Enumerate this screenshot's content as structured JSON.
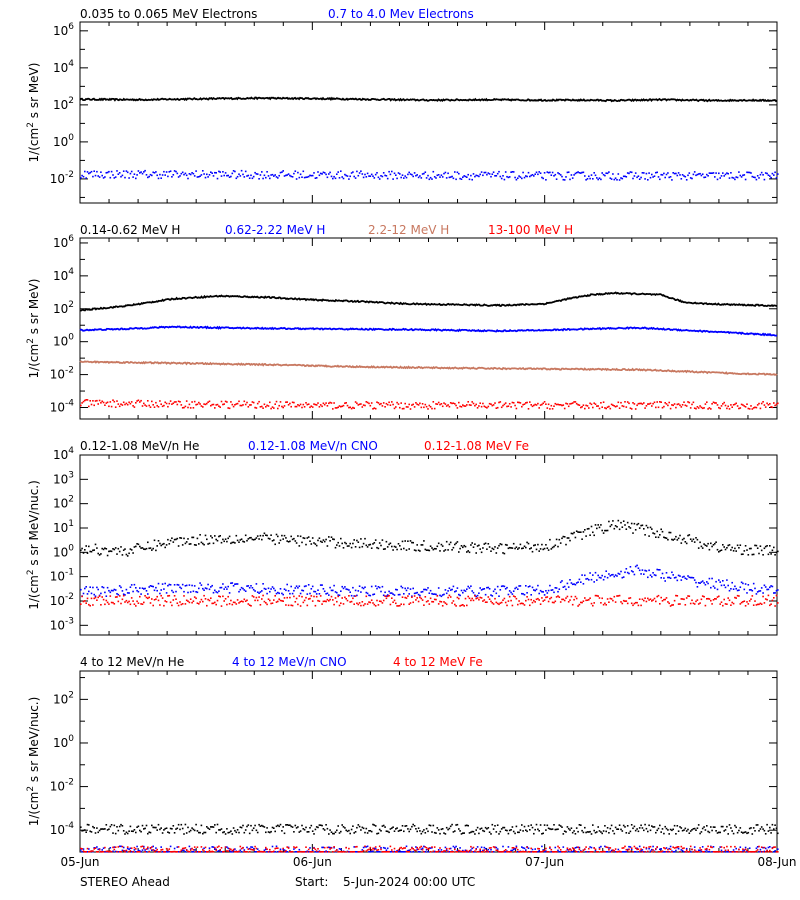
{
  "footer": {
    "spacecraft": "STEREO Ahead",
    "start_label": "Start:",
    "start_value": "5-Jun-2024 00:00 UTC"
  },
  "colors": {
    "black": "#000000",
    "blue": "#0000ff",
    "brown": "#c87860",
    "red": "#ff0000"
  },
  "chart_data": [
    {
      "type": "scatter",
      "title": "",
      "ylabel": "1/(cm² s sr MeV)",
      "ylabel_parts": [
        "1/(cm",
        "2",
        " s sr MeV)"
      ],
      "yscale": "log",
      "ylim": [
        0.0005,
        3000000
      ],
      "yticks": [
        {
          "b": "10",
          "e": "-2",
          "v": 0.01
        },
        {
          "b": "10",
          "e": "0",
          "v": 1
        },
        {
          "b": "10",
          "e": "2",
          "v": 100
        },
        {
          "b": "10",
          "e": "4",
          "v": 10000
        },
        {
          "b": "10",
          "e": "6",
          "v": 1000000
        }
      ],
      "xlim": [
        "2024-06-05",
        "2024-06-08"
      ],
      "show_xticklabels": false,
      "series": [
        {
          "name": "0.035 to 0.065 MeV Electrons",
          "color": "black",
          "style": "line",
          "x": [
            0,
            0.25,
            0.5,
            0.75,
            1.0,
            1.25,
            1.5,
            1.75,
            2.0,
            2.2,
            2.3,
            2.5,
            2.75,
            2.85,
            3.0
          ],
          "y": [
            200,
            190,
            210,
            230,
            220,
            200,
            180,
            190,
            180,
            180,
            170,
            190,
            170,
            180,
            170
          ]
        },
        {
          "name": "0.7 to 4.0 Mev Electrons",
          "color": "blue",
          "style": "dots",
          "x": [
            0,
            1,
            2,
            3
          ],
          "y": [
            0.02,
            0.018,
            0.016,
            0.016
          ]
        }
      ]
    },
    {
      "type": "scatter",
      "title": "",
      "ylabel": "1/(cm² s sr MeV)",
      "ylabel_parts": [
        "1/(cm",
        "2",
        " s sr MeV)"
      ],
      "yscale": "log",
      "ylim": [
        2e-05,
        2000000
      ],
      "yticks": [
        {
          "b": "10",
          "e": "-4",
          "v": 0.0001
        },
        {
          "b": "10",
          "e": "-2",
          "v": 0.01
        },
        {
          "b": "10",
          "e": "0",
          "v": 1
        },
        {
          "b": "10",
          "e": "2",
          "v": 100
        },
        {
          "b": "10",
          "e": "4",
          "v": 10000
        },
        {
          "b": "10",
          "e": "6",
          "v": 1000000
        }
      ],
      "xlim": [
        "2024-06-05",
        "2024-06-08"
      ],
      "show_xticklabels": false,
      "series": [
        {
          "name": "0.14-0.62 MeV H",
          "color": "black",
          "style": "line",
          "x": [
            0,
            0.2,
            0.4,
            0.6,
            0.8,
            1.0,
            1.2,
            1.4,
            1.6,
            1.8,
            2.0,
            2.1,
            2.2,
            2.3,
            2.4,
            2.5,
            2.6,
            2.7,
            2.8,
            3.0
          ],
          "y": [
            80,
            150,
            400,
            600,
            500,
            350,
            280,
            200,
            180,
            160,
            200,
            400,
            700,
            900,
            800,
            700,
            250,
            200,
            180,
            150
          ]
        },
        {
          "name": "0.62-2.22 MeV H",
          "color": "blue",
          "style": "line",
          "x": [
            0,
            0.2,
            0.4,
            0.6,
            1.0,
            1.4,
            1.8,
            2.0,
            2.2,
            2.4,
            2.6,
            2.8,
            3.0
          ],
          "y": [
            5,
            6,
            8,
            7,
            6,
            5.5,
            4.5,
            5,
            6,
            7,
            5,
            3.5,
            2.5
          ]
        },
        {
          "name": "2.2-12 MeV H",
          "color": "brown",
          "style": "line",
          "x": [
            0,
            0.4,
            0.8,
            1.2,
            1.6,
            2.0,
            2.4,
            2.8,
            3.0
          ],
          "y": [
            0.06,
            0.05,
            0.04,
            0.03,
            0.025,
            0.022,
            0.02,
            0.012,
            0.01
          ]
        },
        {
          "name": "13-100 MeV H",
          "color": "red",
          "style": "dots",
          "x": [
            0,
            1,
            2,
            3
          ],
          "y": [
            0.0002,
            0.00015,
            0.00015,
            0.00015
          ]
        }
      ]
    },
    {
      "type": "scatter",
      "title": "",
      "ylabel": "1/(cm² s sr MeV/nuc.)",
      "ylabel_parts": [
        "1/(cm",
        "2",
        " s sr MeV/nuc.)"
      ],
      "yscale": "log",
      "ylim": [
        0.0004,
        10000
      ],
      "yticks": [
        {
          "b": "10",
          "e": "-3",
          "v": 0.001
        },
        {
          "b": "10",
          "e": "-2",
          "v": 0.01
        },
        {
          "b": "10",
          "e": "-1",
          "v": 0.1
        },
        {
          "b": "10",
          "e": "0",
          "v": 1
        },
        {
          "b": "10",
          "e": "1",
          "v": 10
        },
        {
          "b": "10",
          "e": "2",
          "v": 100
        },
        {
          "b": "10",
          "e": "3",
          "v": 1000
        },
        {
          "b": "10",
          "e": "4",
          "v": 10000
        }
      ],
      "xlim": [
        "2024-06-05",
        "2024-06-08"
      ],
      "show_xticklabels": false,
      "series": [
        {
          "name": "0.12-1.08 MeV/n He",
          "color": "black",
          "style": "dots",
          "x": [
            0,
            0.2,
            0.4,
            0.6,
            0.8,
            1.0,
            1.2,
            1.4,
            1.6,
            1.8,
            2.0,
            2.1,
            2.2,
            2.3,
            2.4,
            2.5,
            2.6,
            2.7,
            2.8,
            3.0
          ],
          "y": [
            1.5,
            1.2,
            3,
            4,
            4,
            3,
            2.5,
            2,
            1.8,
            1.5,
            2,
            4,
            8,
            15,
            10,
            6,
            4,
            2,
            1.5,
            1.2
          ]
        },
        {
          "name": "0.12-1.08 MeV/n CNO",
          "color": "blue",
          "style": "dots",
          "x": [
            0,
            0.5,
            1.0,
            1.5,
            2.0,
            2.2,
            2.4,
            2.6,
            3.0
          ],
          "y": [
            0.025,
            0.04,
            0.03,
            0.025,
            0.03,
            0.1,
            0.2,
            0.08,
            0.025
          ]
        },
        {
          "name": "0.12-1.08 MeV Fe",
          "color": "red",
          "style": "dots",
          "x": [
            0,
            1,
            2,
            3
          ],
          "y": [
            0.011,
            0.011,
            0.011,
            0.011
          ]
        }
      ]
    },
    {
      "type": "scatter",
      "title": "",
      "ylabel": "1/(cm² s sr MeV/nuc.)",
      "ylabel_parts": [
        "1/(cm",
        "2",
        " s sr MeV/nuc.)"
      ],
      "yscale": "log",
      "ylim": [
        1e-05,
        2000
      ],
      "yticks": [
        {
          "b": "10",
          "e": "-4",
          "v": 0.0001
        },
        {
          "b": "10",
          "e": "-2",
          "v": 0.01
        },
        {
          "b": "10",
          "e": "0",
          "v": 1
        },
        {
          "b": "10",
          "e": "2",
          "v": 100
        }
      ],
      "xlim": [
        "2024-06-05",
        "2024-06-08"
      ],
      "xticklabels": [
        "05-Jun",
        "06-Jun",
        "07-Jun",
        "08-Jun"
      ],
      "show_xticklabels": true,
      "series": [
        {
          "name": "4 to 12 MeV/n He",
          "color": "black",
          "style": "dots",
          "x": [
            0,
            1,
            2,
            3
          ],
          "y": [
            0.00012,
            0.00012,
            0.00012,
            0.00012
          ]
        },
        {
          "name": "4 to 12 MeV/n CNO",
          "color": "blue",
          "style": "dots",
          "x": [
            0.1,
            0.7,
            1.3,
            2.0
          ],
          "y": [
            1.2e-05,
            1.2e-05,
            1.2e-05,
            1.2e-05
          ]
        },
        {
          "name": "4 to 12 MeV Fe",
          "color": "red",
          "style": "dots",
          "x": [
            0.4,
            2.8
          ],
          "y": [
            1.2e-05,
            1.2e-05
          ]
        }
      ]
    }
  ]
}
